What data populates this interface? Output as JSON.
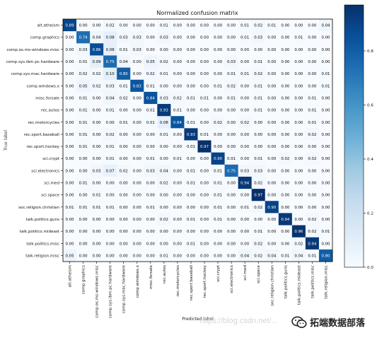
{
  "chart_data": {
    "type": "heatmap",
    "title": "Normalized confusion matrix",
    "xlabel": "Predicted label",
    "ylabel": "True label",
    "categories": [
      "alt.atheism",
      "comp.graphics",
      "comp.os.ms-windows.misc",
      "comp.sys.ibm.pc.hardware",
      "comp.sys.mac.hardware",
      "comp.windows.x",
      "misc.forsale",
      "rec.autos",
      "rec.motorcycles",
      "rec.sport.baseball",
      "rec.sport.hockey",
      "sci.crypt",
      "sci.electronics",
      "sci.med",
      "sci.space",
      "soc.religion.christian",
      "talk.politics.guns",
      "talk.politics.mideast",
      "talk.politics.misc",
      "talk.religion.misc"
    ],
    "matrix": [
      [
        0.89,
        0.0,
        0.0,
        0.02,
        0.0,
        0.0,
        0.0,
        0.01,
        0.0,
        0.0,
        0.0,
        0.0,
        0.0,
        0.01,
        0.02,
        0.01,
        0.0,
        0.0,
        0.0,
        0.04
      ],
      [
        0.0,
        0.74,
        0.04,
        0.08,
        0.03,
        0.03,
        0.0,
        0.03,
        0.0,
        0.0,
        0.0,
        0.0,
        0.0,
        0.01,
        0.03,
        0.0,
        0.0,
        0.01,
        0.0,
        0.0
      ],
      [
        0.0,
        0.03,
        0.86,
        0.08,
        0.01,
        0.03,
        0.0,
        0.0,
        0.0,
        0.0,
        0.0,
        0.0,
        0.0,
        0.0,
        0.0,
        0.0,
        0.0,
        0.0,
        0.0,
        0.0
      ],
      [
        0.0,
        0.01,
        0.09,
        0.75,
        0.04,
        0.0,
        0.05,
        0.02,
        0.0,
        0.0,
        0.0,
        0.0,
        0.03,
        0.0,
        0.01,
        0.0,
        0.0,
        0.0,
        0.0,
        0.0
      ],
      [
        0.0,
        0.02,
        0.02,
        0.1,
        0.8,
        0.0,
        0.02,
        0.01,
        0.0,
        0.0,
        0.0,
        0.0,
        0.01,
        0.01,
        0.02,
        0.0,
        0.0,
        0.0,
        0.0,
        0.01
      ],
      [
        0.0,
        0.05,
        0.02,
        0.03,
        0.01,
        0.83,
        0.01,
        0.0,
        0.0,
        0.0,
        0.0,
        0.01,
        0.02,
        0.0,
        0.01,
        0.0,
        0.0,
        0.0,
        0.0,
        0.01
      ],
      [
        0.0,
        0.01,
        0.0,
        0.04,
        0.02,
        0.0,
        0.84,
        0.03,
        0.02,
        0.01,
        0.01,
        0.0,
        0.01,
        0.0,
        0.01,
        0.0,
        0.0,
        0.0,
        0.01,
        0.0
      ],
      [
        0.0,
        0.01,
        0.0,
        0.01,
        0.0,
        0.0,
        0.01,
        0.93,
        0.01,
        0.0,
        0.0,
        0.0,
        0.0,
        0.0,
        0.01,
        0.0,
        0.0,
        0.0,
        0.01,
        0.0
      ],
      [
        0.0,
        0.01,
        0.0,
        0.0,
        0.01,
        0.0,
        0.01,
        0.08,
        0.84,
        0.01,
        0.0,
        0.02,
        0.0,
        0.02,
        0.0,
        0.0,
        0.0,
        0.0,
        0.01,
        0.0
      ],
      [
        0.0,
        0.01,
        0.0,
        0.02,
        0.0,
        0.0,
        0.0,
        0.01,
        0.0,
        0.93,
        0.01,
        0.0,
        0.0,
        0.0,
        0.0,
        0.0,
        0.0,
        0.0,
        0.02,
        0.0
      ],
      [
        0.0,
        0.01,
        0.0,
        0.01,
        0.0,
        0.0,
        0.0,
        0.0,
        0.0,
        0.01,
        0.97,
        0.0,
        0.0,
        0.0,
        0.0,
        0.0,
        0.0,
        0.0,
        0.0,
        0.0
      ],
      [
        0.0,
        0.0,
        0.0,
        0.01,
        0.0,
        0.0,
        0.01,
        0.0,
        0.01,
        0.0,
        0.0,
        0.9,
        0.01,
        0.0,
        0.01,
        0.0,
        0.02,
        0.0,
        0.02,
        0.0
      ],
      [
        0.0,
        0.0,
        0.03,
        0.07,
        0.02,
        0.0,
        0.03,
        0.04,
        0.0,
        0.01,
        0.0,
        0.01,
        0.75,
        0.03,
        0.03,
        0.0,
        0.0,
        0.0,
        0.0,
        0.0
      ],
      [
        0.0,
        0.01,
        0.0,
        0.0,
        0.0,
        0.0,
        0.0,
        0.02,
        0.0,
        0.01,
        0.0,
        0.01,
        0.0,
        0.94,
        0.02,
        0.0,
        0.0,
        0.0,
        0.0,
        0.0
      ],
      [
        0.0,
        0.0,
        0.01,
        0.0,
        0.0,
        0.0,
        0.0,
        0.0,
        0.0,
        0.0,
        0.0,
        0.01,
        0.0,
        0.0,
        0.97,
        0.0,
        0.0,
        0.0,
        0.0,
        0.0
      ],
      [
        0.01,
        0.01,
        0.01,
        0.01,
        0.0,
        0.0,
        0.01,
        0.0,
        0.0,
        0.0,
        0.0,
        0.01,
        0.0,
        0.01,
        0.02,
        0.9,
        0.0,
        0.0,
        0.0,
        0.0
      ],
      [
        0.0,
        0.0,
        0.0,
        0.0,
        0.0,
        0.0,
        0.0,
        0.02,
        0.0,
        0.01,
        0.0,
        0.01,
        0.0,
        0.0,
        0.0,
        0.0,
        0.94,
        0.0,
        0.02,
        0.0
      ],
      [
        0.0,
        0.0,
        0.0,
        0.0,
        0.0,
        0.0,
        0.0,
        0.0,
        0.0,
        0.0,
        0.0,
        0.0,
        0.0,
        0.0,
        0.01,
        0.0,
        0.0,
        0.96,
        0.02,
        0.01
      ],
      [
        0.0,
        0.0,
        0.0,
        0.0,
        0.0,
        0.0,
        0.0,
        0.0,
        0.0,
        0.01,
        0.0,
        0.0,
        0.0,
        0.0,
        0.02,
        0.0,
        0.0,
        0.02,
        0.94,
        0.0
      ],
      [
        0.05,
        0.0,
        0.0,
        0.0,
        0.0,
        0.0,
        0.0,
        0.01,
        0.0,
        0.0,
        0.0,
        0.0,
        0.0,
        0.04,
        0.02,
        0.04,
        0.01,
        0.04,
        0.01,
        0.8
      ]
    ],
    "colorbar": {
      "ticks": [
        0.0,
        0.2,
        0.4,
        0.6,
        0.8
      ],
      "colormap": "blues",
      "min": 0.0,
      "max": 0.97
    },
    "grid": false
  },
  "watermark": "https://blog.csdn.net/...",
  "brand": "拓端数据部落",
  "colors": {
    "background": "#ffffff",
    "text": "#111111",
    "cell_dark_text": "#000000",
    "cell_light_text": "#ffffff"
  }
}
